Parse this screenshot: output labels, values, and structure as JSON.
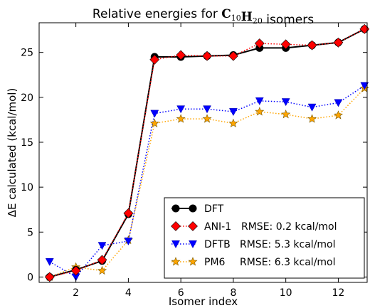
{
  "chart_data": {
    "type": "line",
    "title": {
      "prefix": "Relative energies for ",
      "formula": [
        {
          "text": "C",
          "sub": "10"
        },
        {
          "text": "H",
          "sub": "20"
        }
      ],
      "suffix": " isomers"
    },
    "xlabel": "Isomer index",
    "ylabel": "ΔE calculated (kcal/mol)",
    "xlim": [
      0.6,
      13.1
    ],
    "ylim": [
      -0.6,
      28.3
    ],
    "xticks": [
      2,
      4,
      6,
      8,
      10,
      12
    ],
    "yticks": [
      0,
      5,
      10,
      15,
      20,
      25
    ],
    "grid": false,
    "legend_position": "lower-right",
    "x": [
      1,
      2,
      3,
      4,
      5,
      6,
      7,
      8,
      9,
      10,
      11,
      12,
      13
    ],
    "series": [
      {
        "name": "DFT",
        "rmse_label": "",
        "values": [
          0.0,
          0.8,
          1.8,
          7.0,
          24.5,
          24.5,
          24.6,
          24.7,
          25.5,
          25.5,
          25.8,
          26.1,
          27.6
        ],
        "color": "#000000",
        "marker": "circle",
        "line_style": "solid"
      },
      {
        "name": "ANI-1",
        "rmse_label": "RMSE: 0.2 kcal/mol",
        "values": [
          0.0,
          0.7,
          1.9,
          7.1,
          24.2,
          24.7,
          24.6,
          24.6,
          26.0,
          25.9,
          25.8,
          26.1,
          27.6
        ],
        "color": "#ff0000",
        "marker": "diamond",
        "line_style": "dotted"
      },
      {
        "name": "DFTB",
        "rmse_label": "RMSE: 5.3 kcal/mol",
        "values": [
          1.7,
          0.0,
          3.5,
          4.0,
          18.2,
          18.7,
          18.7,
          18.4,
          19.6,
          19.5,
          18.9,
          19.4,
          21.3
        ],
        "color": "#0000ff",
        "marker": "triangle-down",
        "line_style": "dotted"
      },
      {
        "name": "PM6",
        "rmse_label": "RMSE: 6.3 kcal/mol",
        "values": [
          0.0,
          1.1,
          0.7,
          4.1,
          17.1,
          17.6,
          17.6,
          17.1,
          18.4,
          18.1,
          17.6,
          18.0,
          21.0
        ],
        "color": "#ffa500",
        "marker": "star",
        "line_style": "dotted"
      }
    ]
  }
}
